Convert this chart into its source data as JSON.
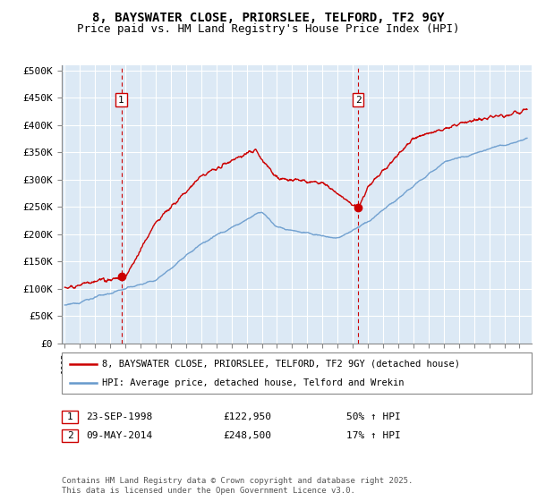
{
  "title": "8, BAYSWATER CLOSE, PRIORSLEE, TELFORD, TF2 9GY",
  "subtitle": "Price paid vs. HM Land Registry's House Price Index (HPI)",
  "ylabel_ticks": [
    "£0",
    "£50K",
    "£100K",
    "£150K",
    "£200K",
    "£250K",
    "£300K",
    "£350K",
    "£400K",
    "£450K",
    "£500K"
  ],
  "ytick_values": [
    0,
    50000,
    100000,
    150000,
    200000,
    250000,
    300000,
    350000,
    400000,
    450000,
    500000
  ],
  "ylim": [
    0,
    510000
  ],
  "xlim_start": 1994.8,
  "xlim_end": 2025.8,
  "sale1_date": 1998.73,
  "sale1_price": 122950,
  "sale2_date": 2014.36,
  "sale2_price": 248500,
  "line1_color": "#cc0000",
  "line2_color": "#6699cc",
  "background_color": "#dce9f5",
  "fig_bg_color": "#ffffff",
  "grid_color": "#ffffff",
  "vline_color": "#cc0000",
  "legend_line1": "8, BAYSWATER CLOSE, PRIORSLEE, TELFORD, TF2 9GY (detached house)",
  "legend_line2": "HPI: Average price, detached house, Telford and Wrekin",
  "footnote": "Contains HM Land Registry data © Crown copyright and database right 2025.\nThis data is licensed under the Open Government Licence v3.0.",
  "title_fontsize": 10,
  "subtitle_fontsize": 9,
  "tick_fontsize": 8
}
